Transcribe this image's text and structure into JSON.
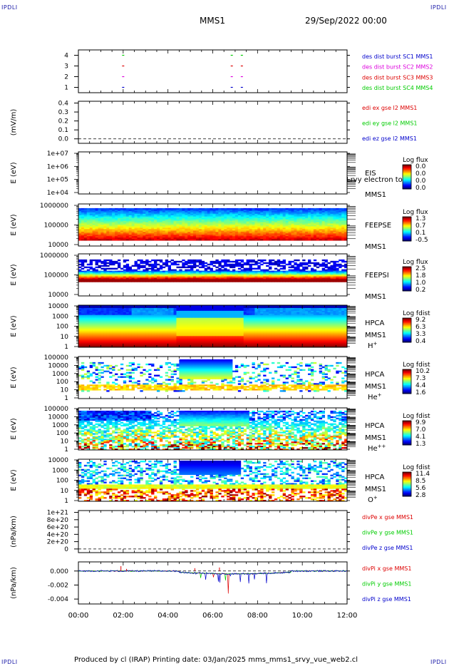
{
  "corners": {
    "tl": "IPDLI",
    "tr": "IPDLI",
    "bl": "IPDLI",
    "br": "IPDLI"
  },
  "header": {
    "spacecraft": "MMS1",
    "datetime": "29/Sep/2022 00:00"
  },
  "footer": {
    "text": "Produced by cl (IRAP)   Printing date: 03/Jan/2025   mms_mms1_srvy_vue_web2.cl"
  },
  "colors": {
    "blue": "#0000cc",
    "magenta": "#dd00dd",
    "red": "#dd0000",
    "green": "#00cc00",
    "frame": "#000000"
  },
  "chart_data": [
    {
      "id": "p1",
      "type": "scatter",
      "ylabel": "",
      "yticks": [
        "4",
        "3",
        "2",
        "1"
      ],
      "ylim": [
        0.5,
        4.5
      ],
      "legend": [
        {
          "text": "des dist burst SC1 MMS1",
          "color": "#0000cc"
        },
        {
          "text": "des dist burst SC2 MMS2",
          "color": "#dd00dd"
        },
        {
          "text": "des dist burst SC3 MMS3",
          "color": "#dd0000"
        },
        {
          "text": "des dist burst SC4 MMS4",
          "color": "#00cc00"
        }
      ],
      "series": [
        {
          "y": 4,
          "x": [
            2.0,
            6.85,
            7.3
          ],
          "color": "#00cc00"
        },
        {
          "y": 3,
          "x": [
            2.0,
            6.85,
            7.3
          ],
          "color": "#dd0000"
        },
        {
          "y": 2,
          "x": [
            2.0,
            6.85,
            7.3
          ],
          "color": "#dd00dd"
        },
        {
          "y": 1,
          "x": [
            2.0,
            6.85,
            7.3
          ],
          "color": "#0000cc"
        }
      ]
    },
    {
      "id": "p2",
      "type": "line",
      "ylabel": "(mV/m)",
      "yticks": [
        "0.4",
        "0.3",
        "0.2",
        "0.1",
        "0.0"
      ],
      "ylim": [
        -0.05,
        0.42
      ],
      "zero_line": true,
      "legend": [
        {
          "text": "edi ex gse l2 MMS1",
          "color": "#dd0000"
        },
        {
          "text": "edi ey gse l2 MMS1",
          "color": "#00cc00"
        },
        {
          "text": "edi ez gse l2 MMS1",
          "color": "#0000cc"
        }
      ]
    },
    {
      "id": "p3",
      "type": "heatmap",
      "ylabel": "E (eV)",
      "yticks": [
        "1e+07",
        "1e+06",
        "1e+05",
        "1e+04"
      ],
      "labels": [
        "EIS",
        "MMS1"
      ],
      "overlay": "Lrvy electron to",
      "colorbar": {
        "title": "Log flux",
        "ticks": [
          "0.0",
          "0.0",
          "0.0",
          "0.0"
        ]
      }
    },
    {
      "id": "p4",
      "type": "heatmap",
      "ylabel": "E (eV)",
      "yticks": [
        "1000000",
        "100000",
        "10000"
      ],
      "labels": [
        "FEEPSE",
        "MMS1"
      ],
      "colorbar": {
        "title": "Log flux",
        "ticks": [
          "1.3",
          "0.7",
          "0.1",
          "-0.5"
        ]
      }
    },
    {
      "id": "p5",
      "type": "heatmap",
      "ylabel": "E (eV)",
      "yticks": [
        "1000000",
        "100000",
        "10000"
      ],
      "labels": [
        "FEEPSI",
        "MMS1"
      ],
      "colorbar": {
        "title": "Log flux",
        "ticks": [
          "2.5",
          "1.8",
          "1.0",
          "0.2"
        ]
      }
    },
    {
      "id": "p6",
      "type": "heatmap",
      "ylabel": "E (eV)",
      "yticks": [
        "10000",
        "1000",
        "100",
        "10",
        "1"
      ],
      "labels": [
        "HPCA",
        "MMS1",
        "H+"
      ],
      "colorbar": {
        "title": "Log fdist",
        "ticks": [
          "9.2",
          "6.3",
          "3.3",
          "0.4"
        ]
      }
    },
    {
      "id": "p7",
      "type": "heatmap",
      "ylabel": "E (eV)",
      "yticks": [
        "100000",
        "10000",
        "1000",
        "100",
        "10",
        "1"
      ],
      "labels": [
        "HPCA",
        "MMS1",
        "He+"
      ],
      "colorbar": {
        "title": "Log fdist",
        "ticks": [
          "10.2",
          "7.3",
          "4.4",
          "1.6"
        ]
      }
    },
    {
      "id": "p8",
      "type": "heatmap",
      "ylabel": "E (eV)",
      "yticks": [
        "100000",
        "10000",
        "1000",
        "100",
        "10",
        "1"
      ],
      "labels": [
        "HPCA",
        "MMS1",
        "He++"
      ],
      "colorbar": {
        "title": "Log fdist",
        "ticks": [
          "9.9",
          "7.0",
          "4.1",
          "1.3"
        ]
      }
    },
    {
      "id": "p9",
      "type": "heatmap",
      "ylabel": "E (eV)",
      "yticks": [
        "10000",
        "1000",
        "100",
        "10",
        "1"
      ],
      "labels": [
        "HPCA",
        "MMS1",
        "O+"
      ],
      "colorbar": {
        "title": "Log fdist",
        "ticks": [
          "11.4",
          "8.5",
          "5.6",
          "2.8"
        ]
      }
    },
    {
      "id": "p10",
      "type": "line",
      "ylabel": "(nPa/km)",
      "yticks": [
        "1e+21",
        "8e+20",
        "6e+20",
        "4e+20",
        "2e+20",
        "0"
      ],
      "zero_line": true,
      "legend": [
        {
          "text": "divPe x gse MMS1",
          "color": "#dd0000"
        },
        {
          "text": "divPe y gse MMS1",
          "color": "#00cc00"
        },
        {
          "text": "divPe z gse MMS1",
          "color": "#0000cc"
        }
      ]
    },
    {
      "id": "p11",
      "type": "line",
      "ylabel": "(nPa/km)",
      "yticks": [
        "0.000",
        "-0.002",
        "-0.004"
      ],
      "ylim": [
        -0.0047,
        0.0013
      ],
      "zero_line": true,
      "legend": [
        {
          "text": "divPi x gse MMS1",
          "color": "#dd0000"
        },
        {
          "text": "divPi y gse MMS1",
          "color": "#00cc00"
        },
        {
          "text": "divPi z gse MMS1",
          "color": "#0000cc"
        }
      ]
    }
  ],
  "xaxis": {
    "ticks": [
      "00:00",
      "02:00",
      "04:00",
      "06:00",
      "08:00",
      "10:00",
      "12:00"
    ],
    "range_hours": [
      0,
      12
    ]
  }
}
